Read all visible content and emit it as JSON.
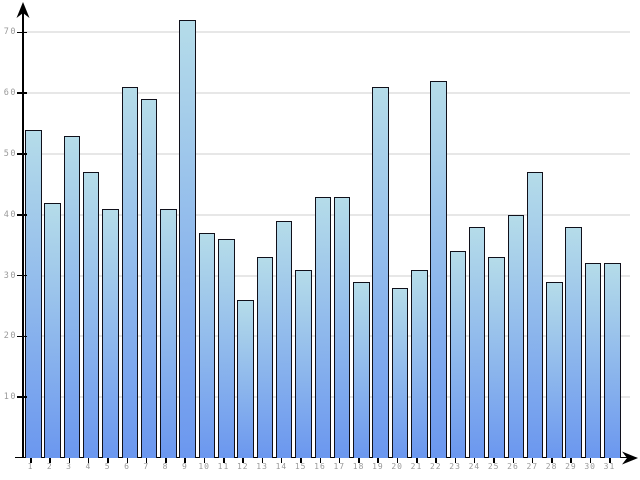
{
  "chart_data": {
    "type": "bar",
    "title": "",
    "xlabel": "",
    "ylabel": "",
    "categories": [
      "1",
      "2",
      "3",
      "4",
      "5",
      "6",
      "7",
      "8",
      "9",
      "10",
      "11",
      "12",
      "13",
      "14",
      "15",
      "16",
      "17",
      "18",
      "19",
      "20",
      "21",
      "22",
      "23",
      "24",
      "25",
      "26",
      "27",
      "28",
      "29",
      "30",
      "31"
    ],
    "values": [
      54,
      42,
      53,
      47,
      41,
      61,
      59,
      41,
      72,
      37,
      36,
      26,
      33,
      39,
      31,
      43,
      43,
      29,
      61,
      28,
      31,
      62,
      34,
      38,
      33,
      40,
      47,
      29,
      38,
      32,
      32
    ],
    "y_ticks": [
      10,
      20,
      30,
      40,
      50,
      60,
      70
    ],
    "ylim": [
      0,
      75
    ],
    "grid": true,
    "legend": "none",
    "colors": {
      "bar_gradient_top": "#b5dce9",
      "bar_gradient_bottom": "#6b97ef",
      "bar_border": "#10101a",
      "gridline": "#e7e7e7",
      "axis": "#000000",
      "tick_label": "#9a9a9a"
    }
  }
}
